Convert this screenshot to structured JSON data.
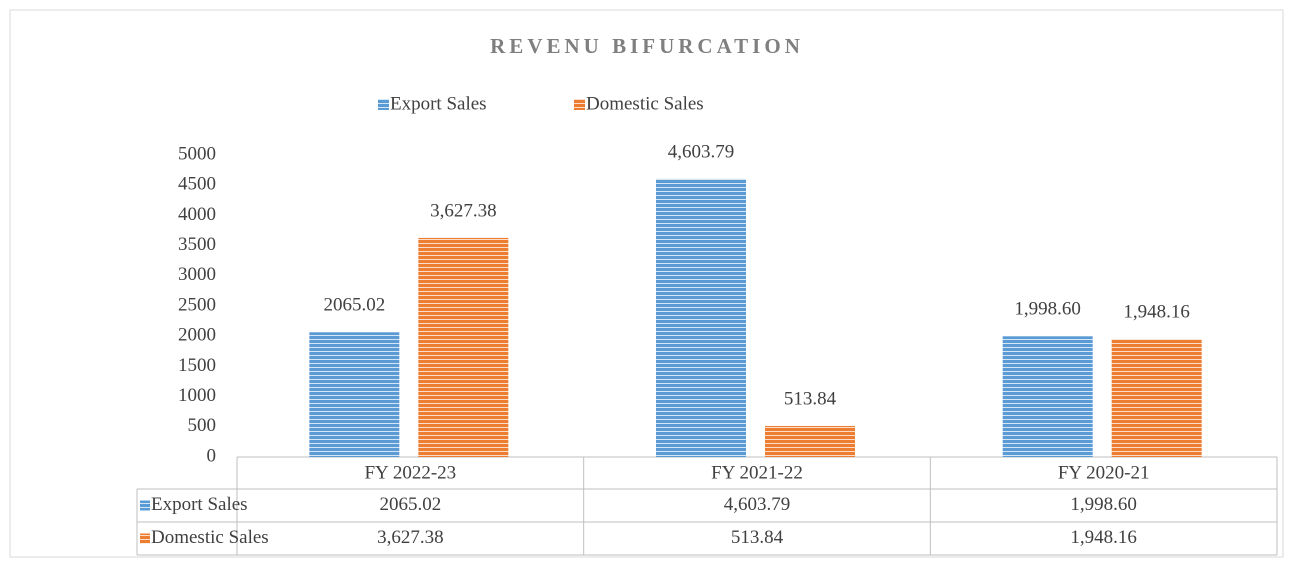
{
  "chart_data": {
    "type": "bar",
    "title": "REVENU BIFURCATION",
    "categories": [
      "FY 2022-23",
      "FY 2021-22",
      "FY 2020-21"
    ],
    "series": [
      {
        "name": "Export Sales",
        "color": "#5b9bd5",
        "values": [
          2065.02,
          4603.79,
          1998.6
        ],
        "value_labels": [
          "2065.02",
          "4,603.79",
          "1,998.60"
        ]
      },
      {
        "name": "Domestic Sales",
        "color": "#ed7d31",
        "values": [
          3627.38,
          513.84,
          1948.16
        ],
        "value_labels": [
          "3,627.38",
          "513.84",
          "1,948.16"
        ]
      }
    ],
    "ylim": [
      0,
      5000
    ],
    "yticks": [
      0,
      500,
      1000,
      1500,
      2000,
      2500,
      3000,
      3500,
      4000,
      4500,
      5000
    ],
    "grid": false,
    "legend": "top",
    "data_table": true
  }
}
